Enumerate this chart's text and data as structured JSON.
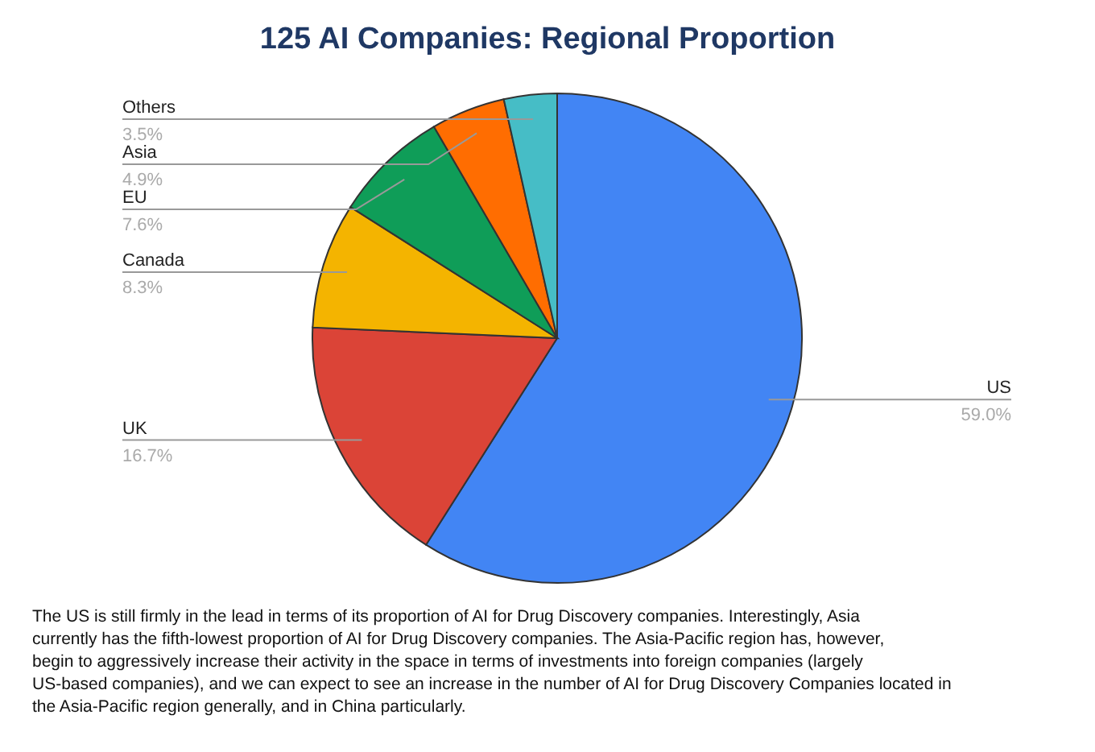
{
  "chart_data": {
    "type": "pie",
    "title": "125 AI Companies: Regional Proportion",
    "categories": [
      "US",
      "UK",
      "Canada",
      "EU",
      "Asia",
      "Others"
    ],
    "values": [
      59.0,
      16.7,
      8.3,
      7.6,
      4.9,
      3.5
    ],
    "value_labels": [
      "59.0%",
      "16.7%",
      "8.3%",
      "7.6%",
      "4.9%",
      "3.5%"
    ],
    "colors": [
      "#4285f4",
      "#db4437",
      "#f4b400",
      "#0f9d58",
      "#ff6d01",
      "#46bdc6"
    ],
    "annotations": [
      "The US is still firmly in the lead in terms of its proportion of AI for Drug Discovery companies. Interestingly, Asia currently has the fifth-lowest proportion of AI for Drug Discovery companies. The Asia-Pacific region has, however, begin to aggressively increase their activity in the space in terms of investments into foreign companies (largely US-based companies), and we can expect to see an increase in the number of AI for Drug Discovery Companies located in the Asia-Pacific region generally, and in China particularly."
    ]
  }
}
